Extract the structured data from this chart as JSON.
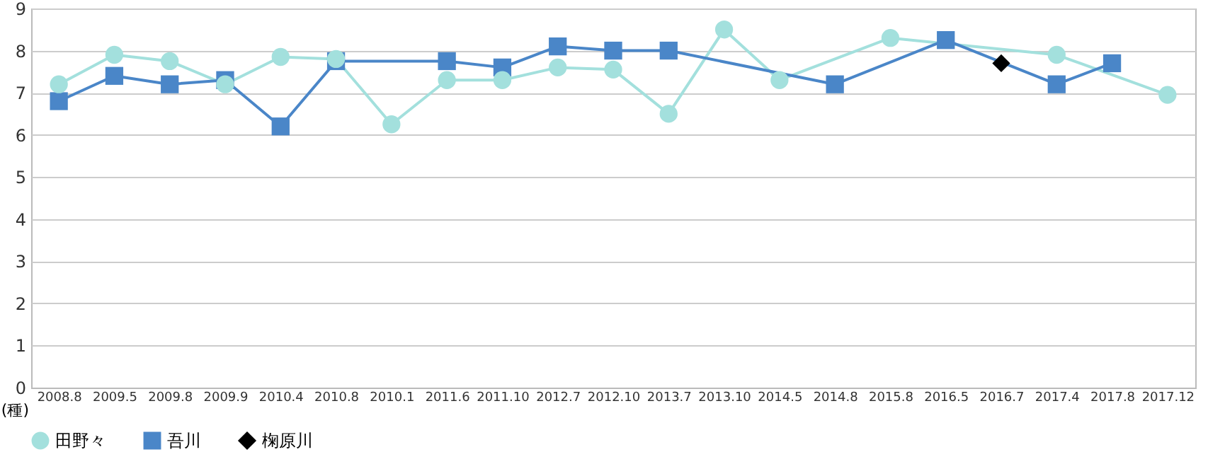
{
  "chart_data": {
    "type": "line",
    "ylabel": "(種)",
    "categories": [
      "2008.8",
      "2009.5",
      "2009.8",
      "2009.9",
      "2010.4",
      "2010.8",
      "2010.1",
      "2011.6",
      "2011.10",
      "2012.7",
      "2012.10",
      "2013.7",
      "2013.10",
      "2014.5",
      "2014.8",
      "2015.8",
      "2016.5",
      "2016.7",
      "2017.4",
      "2017.8",
      "2017.12"
    ],
    "series": [
      {
        "name": "田野々",
        "color": "#a3e0dd",
        "marker": "circle",
        "values": [
          7.2,
          7.9,
          7.75,
          7.2,
          7.85,
          7.8,
          6.25,
          7.3,
          7.3,
          7.6,
          7.55,
          6.5,
          8.5,
          7.3,
          null,
          8.3,
          null,
          null,
          7.9,
          null,
          6.95
        ]
      },
      {
        "name": "吾川",
        "color": "#4a86c8",
        "marker": "square",
        "values": [
          6.8,
          7.4,
          7.2,
          7.3,
          6.2,
          7.75,
          null,
          7.75,
          7.6,
          8.1,
          8.0,
          8.0,
          null,
          null,
          7.2,
          null,
          8.25,
          null,
          7.2,
          7.7,
          null
        ]
      },
      {
        "name": "椈原川",
        "color": "#000000",
        "marker": "diamond",
        "type": "scatter",
        "values": [
          null,
          null,
          null,
          null,
          null,
          null,
          null,
          null,
          null,
          null,
          null,
          null,
          null,
          null,
          null,
          null,
          null,
          7.7,
          null,
          null,
          null
        ]
      }
    ],
    "ylim": [
      0,
      9
    ],
    "yticks": [
      0,
      1,
      2,
      3,
      4,
      5,
      6,
      7,
      8,
      9
    ],
    "grid": "y",
    "legend": "bottom"
  }
}
